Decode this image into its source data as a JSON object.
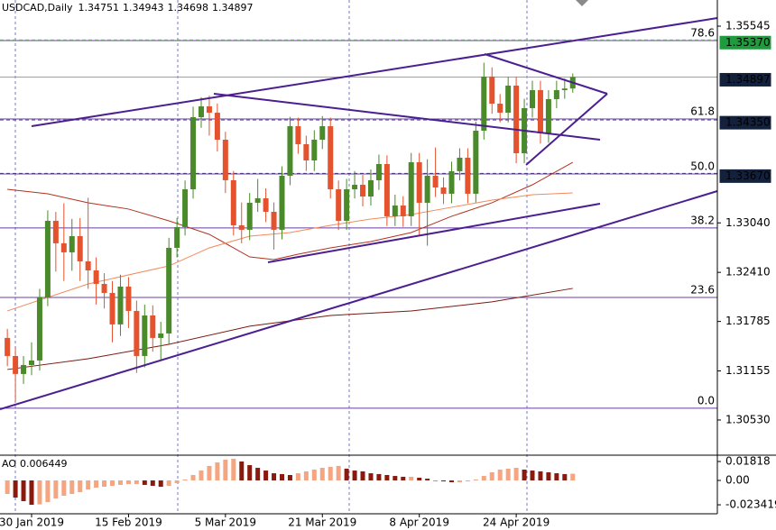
{
  "chart_data": [
    {
      "type": "candlestick",
      "title": "USDCAD,Daily",
      "xlim": [
        -0.91,
        87.9
      ],
      "ylim": [
        1.30082,
        1.35878
      ],
      "xticks": [
        {
          "value": 3,
          "label": "30 Jan 2019"
        },
        {
          "value": 15,
          "label": "15 Feb 2019"
        },
        {
          "value": 27,
          "label": "5 Mar 2019"
        },
        {
          "value": 39,
          "label": "21 Mar 2019"
        },
        {
          "value": 51,
          "label": "8 Apr 2019"
        },
        {
          "value": 63,
          "label": "24 Apr 2019"
        }
      ],
      "yticks": [
        1.35545,
        {
          "value": 1.3304,
          "label": "1.33040"
        },
        {
          "value": 1.3241,
          "label": "1.32410"
        },
        1.31785,
        1.31155,
        {
          "value": 1.3053,
          "label": "1.30530"
        }
      ],
      "up_color": "#4a8a2a",
      "down_color": "#e4532d",
      "open": [
        1.31575,
        1.31345,
        1.31116,
        1.3123,
        1.31288,
        1.32091,
        1.33066,
        1.3278,
        1.32665,
        1.32871,
        1.3255,
        1.32435,
        1.32263,
        1.32148,
        1.31747,
        1.32229,
        1.31919,
        1.31345,
        1.31861,
        1.31575,
        1.31632,
        1.32722,
        1.32986,
        1.33468,
        1.34386,
        1.34524,
        1.34443,
        1.34099,
        1.33583,
        1.33009,
        1.32952,
        1.33296,
        1.33353,
        1.33181,
        1.32952,
        1.3364,
        1.34271,
        1.34042,
        1.33835,
        1.34099,
        1.34271,
        1.33468,
        1.33066,
        1.33468,
        1.33525,
        1.33376,
        1.33583,
        1.33789,
        1.33124,
        1.33261,
        1.33124,
        1.33812,
        1.33296,
        1.3364,
        1.33491,
        1.33411,
        1.33698,
        1.3387,
        1.33411,
        1.34214,
        1.34903,
        1.34558,
        1.34443,
        1.34788,
        1.33927,
        1.34501,
        1.3473,
        1.3418,
        1.34616,
        1.3473,
        1.34751
      ],
      "high": [
        1.3169,
        1.3146,
        1.31345,
        1.3152,
        1.322,
        1.332,
        1.3318,
        1.3329,
        1.3309,
        1.331,
        1.3336,
        1.326,
        1.324,
        1.323,
        1.3238,
        1.3235,
        1.3205,
        1.32,
        1.3199,
        1.3178,
        1.3285,
        1.331,
        1.3358,
        1.3452,
        1.3464,
        1.3466,
        1.3456,
        1.342,
        1.337,
        1.333,
        1.3342,
        1.336,
        1.3348,
        1.333,
        1.3376,
        1.3439,
        1.3438,
        1.3415,
        1.3422,
        1.344,
        1.3438,
        1.3358,
        1.336,
        1.337,
        1.3365,
        1.3372,
        1.3391,
        1.339,
        1.334,
        1.3338,
        1.3393,
        1.3393,
        1.3385,
        1.34,
        1.3362,
        1.3382,
        1.3399,
        1.3399,
        1.3433,
        1.3508,
        1.3502,
        1.3468,
        1.349,
        1.349,
        1.3462,
        1.3485,
        1.3485,
        1.3473,
        1.3485,
        1.3488,
        1.34943
      ],
      "low": [
        1.31215,
        1.3076,
        1.3099,
        1.311,
        1.3116,
        1.3198,
        1.3242,
        1.323,
        1.3243,
        1.323,
        1.322,
        1.32,
        1.3195,
        1.3152,
        1.316,
        1.317,
        1.3113,
        1.312,
        1.314,
        1.313,
        1.315,
        1.326,
        1.3288,
        1.3335,
        1.3425,
        1.3415,
        1.3395,
        1.3342,
        1.3288,
        1.3278,
        1.3282,
        1.3318,
        1.3305,
        1.327,
        1.3283,
        1.3352,
        1.3392,
        1.337,
        1.337,
        1.3398,
        1.3335,
        1.3295,
        1.3295,
        1.3335,
        1.3325,
        1.3326,
        1.3346,
        1.33,
        1.33,
        1.3299,
        1.33,
        1.3288,
        1.3275,
        1.3337,
        1.3328,
        1.3329,
        1.3358,
        1.3329,
        1.333,
        1.341,
        1.3443,
        1.3432,
        1.3432,
        1.338,
        1.338,
        1.3438,
        1.3405,
        1.3406,
        1.345,
        1.3462,
        1.34698
      ],
      "close": [
        1.31345,
        1.31116,
        1.3123,
        1.31288,
        1.32091,
        1.33066,
        1.3278,
        1.32665,
        1.32871,
        1.3255,
        1.32435,
        1.32263,
        1.32148,
        1.31747,
        1.32229,
        1.31919,
        1.31345,
        1.31861,
        1.31575,
        1.31632,
        1.32722,
        1.32986,
        1.33468,
        1.34386,
        1.34524,
        1.34443,
        1.34099,
        1.33583,
        1.33009,
        1.32952,
        1.33296,
        1.33353,
        1.33181,
        1.32952,
        1.3364,
        1.34271,
        1.34042,
        1.33835,
        1.34099,
        1.34271,
        1.33468,
        1.33066,
        1.33468,
        1.33525,
        1.33376,
        1.33583,
        1.33789,
        1.33124,
        1.33261,
        1.33124,
        1.33812,
        1.33296,
        1.3364,
        1.33491,
        1.33411,
        1.33698,
        1.3387,
        1.33411,
        1.34214,
        1.34903,
        1.34558,
        1.34443,
        1.34788,
        1.33927,
        1.34501,
        1.3473,
        1.3418,
        1.34616,
        1.3473,
        1.34751,
        1.34897
      ],
      "lines": [
        {
          "color": "#b2321e",
          "x": [
            0,
            5,
            10,
            15,
            20,
            25,
            30,
            33,
            36,
            40,
            45,
            50,
            55,
            60,
            65,
            70
          ],
          "values": [
            1.33468,
            1.33411,
            1.33296,
            1.33216,
            1.33066,
            1.32894,
            1.32607,
            1.32573,
            1.32642,
            1.32722,
            1.32802,
            1.32917,
            1.33124,
            1.33296,
            1.33525,
            1.33812
          ]
        },
        {
          "color": "#f4895a",
          "x": [
            0,
            10,
            20,
            25,
            30,
            35,
            40,
            45,
            50,
            55,
            60,
            65,
            70
          ],
          "values": [
            1.31919,
            1.32263,
            1.32492,
            1.32722,
            1.32871,
            1.32917,
            1.33009,
            1.33089,
            1.33147,
            1.33239,
            1.3333,
            1.33399,
            1.33422
          ]
        },
        {
          "color": "#7a1a10",
          "x": [
            0,
            10,
            20,
            30,
            40,
            50,
            60,
            70
          ],
          "values": [
            1.31173,
            1.3131,
            1.31494,
            1.31724,
            1.31861,
            1.31919,
            1.32034,
            1.32206
          ]
        }
      ],
      "fibonacci": [
        {
          "value": 1.35362,
          "label": "78.6"
        },
        {
          "value": 1.34363,
          "label": "61.8"
        },
        {
          "value": 1.33663,
          "label": "50.0"
        },
        {
          "value": 1.32975,
          "label": "38.2"
        },
        {
          "value": 1.32091,
          "label": "23.6"
        },
        {
          "value": 1.3068,
          "label": "0.0"
        }
      ],
      "fib_color": "#6b3fa0",
      "price_labels": [
        {
          "value": 1.3537,
          "label": "1.35370",
          "color": "#1f9a3c",
          "line_color": "#7fbf7f",
          "dash": true
        },
        {
          "value": 1.34897,
          "label": "1.34897",
          "color": "#14213d",
          "line_color": "#9aa0a6",
          "dash": false
        },
        {
          "value": 1.3435,
          "label": "1.34350",
          "color": "#14213d",
          "line_color": "#5a4a9a",
          "dash": true
        },
        {
          "value": 1.3367,
          "label": "1.33670",
          "color": "#14213d",
          "line_color": "#4a3a7a",
          "dash": true
        }
      ]
    },
    {
      "type": "bar",
      "title": "AO",
      "ylim": [
        -0.03377,
        0.02425
      ],
      "yticks": [
        0.01818,
        {
          "value": 0,
          "label": "0.00"
        },
        -0.023419
      ],
      "up_color": "#f4a582",
      "down_color": "#8b1a0e",
      "values": [
        -0.013,
        -0.0165,
        -0.0199,
        -0.0234,
        -0.023,
        -0.0208,
        -0.0173,
        -0.0147,
        -0.013,
        -0.0113,
        -0.0087,
        -0.0069,
        -0.0061,
        -0.0052,
        -0.0043,
        -0.0035,
        -0.0035,
        -0.0043,
        -0.0052,
        -0.0061,
        -0.0052,
        -0.0026,
        0.0009,
        0.0052,
        0.0095,
        0.0139,
        0.0173,
        0.0199,
        0.0208,
        0.0182,
        0.0147,
        0.0121,
        0.0095,
        0.0069,
        0.0061,
        0.0052,
        0.0069,
        0.0087,
        0.0104,
        0.0121,
        0.013,
        0.0139,
        0.0113,
        0.0095,
        0.0087,
        0.0069,
        0.0061,
        0.0052,
        0.0043,
        0.0035,
        0.0035,
        0.0026,
        0.0017,
        0.0,
        -0.0009,
        -0.0017,
        -0.0017,
        -0.0009,
        0.0009,
        0.0043,
        0.0078,
        0.0104,
        0.0113,
        0.0121,
        0.0104,
        0.0095,
        0.0087,
        0.0078,
        0.0069,
        0.0061,
        0.006449
      ]
    }
  ]
}
